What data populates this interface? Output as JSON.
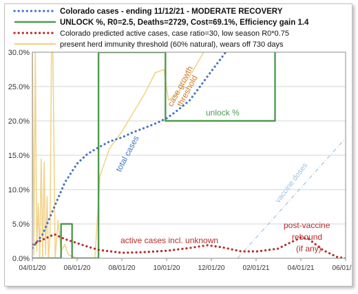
{
  "chart_data": {
    "type": "line",
    "xlim": [
      "2020-04-01",
      "2021-06-01"
    ],
    "x_ticks": [
      "04/01/20",
      "06/01/20",
      "08/01/20",
      "10/01/20",
      "12/01/20",
      "02/01/21",
      "04/01/21",
      "06/01/21"
    ],
    "ylim": [
      0,
      30
    ],
    "y_ticks": [
      "0.0%",
      "5.0%",
      "10.0%",
      "15.0%",
      "20.0%",
      "25.0%",
      "30.0%"
    ],
    "grid": "horizontal",
    "legend_position": "top",
    "legend": [
      {
        "label": "Colorado cases - ending 11/12/21 - MODERATE RECOVERY",
        "color": "#4472c4",
        "style": "dotted",
        "bold": true
      },
      {
        "label": "UNLOCK %, R0=2.5,  Deaths=2729, Cost=69.1%, Efficiency gain 1.4",
        "color": "#4e9a4e",
        "style": "solid",
        "bold": true
      },
      {
        "label": "Colorado predicted active cases, case ratio=30, low season R0*0.75",
        "color": "#b52a2a",
        "style": "dotted",
        "bold": false
      },
      {
        "label": "present herd immunity threshold (60% natural), wears off 730 days",
        "color": "#f2d38a",
        "style": "solid",
        "bold": false
      }
    ],
    "series": [
      {
        "name": "Colorado cases - ending 11/12/21 - MODERATE RECOVERY",
        "color": "#4472c4",
        "style": "dotted",
        "points": [
          [
            "2020-04-01",
            1.5
          ],
          [
            "2020-04-15",
            3.5
          ],
          [
            "2020-05-01",
            7.5
          ],
          [
            "2020-05-15",
            11
          ],
          [
            "2020-06-01",
            13.8
          ],
          [
            "2020-06-15",
            15.2
          ],
          [
            "2020-07-01",
            16.2
          ],
          [
            "2020-07-15",
            17
          ],
          [
            "2020-08-01",
            17.6
          ],
          [
            "2020-08-15",
            18.3
          ],
          [
            "2020-09-01",
            19
          ],
          [
            "2020-09-15",
            19.6
          ],
          [
            "2020-10-01",
            20.4
          ],
          [
            "2020-10-15",
            21.5
          ],
          [
            "2020-11-01",
            23
          ],
          [
            "2020-11-15",
            25
          ],
          [
            "2020-12-01",
            27.3
          ],
          [
            "2020-12-20",
            30
          ]
        ]
      },
      {
        "name": "UNLOCK %, R0=2.5,  Deaths=2729, Cost=69.1%, Efficiency gain 1.4",
        "color": "#4e9a4e",
        "style": "solid",
        "points": [
          [
            "2020-04-01",
            0
          ],
          [
            "2020-05-10",
            0
          ],
          [
            "2020-05-10",
            5
          ],
          [
            "2020-05-25",
            5
          ],
          [
            "2020-05-25",
            0
          ],
          [
            "2020-06-30",
            0
          ],
          [
            "2020-06-30",
            30
          ],
          [
            "2020-09-29",
            30
          ],
          [
            "2020-09-29",
            20
          ],
          [
            "2021-02-25",
            20
          ],
          [
            "2021-02-25",
            30
          ]
        ]
      },
      {
        "name": "Colorado predicted active cases, case ratio=30, low season R0*0.75",
        "color": "#b52a2a",
        "style": "dotted",
        "points": [
          [
            "2020-04-01",
            2
          ],
          [
            "2020-04-15",
            2.7
          ],
          [
            "2020-05-01",
            3.5
          ],
          [
            "2020-05-15",
            2.8
          ],
          [
            "2020-06-01",
            2.2
          ],
          [
            "2020-06-15",
            1.7
          ],
          [
            "2020-07-01",
            1.2
          ],
          [
            "2020-08-01",
            0.8
          ],
          [
            "2020-09-01",
            0.9
          ],
          [
            "2020-10-01",
            1.1
          ],
          [
            "2020-11-01",
            1.5
          ],
          [
            "2020-11-25",
            1.9
          ],
          [
            "2020-12-15",
            1.6
          ],
          [
            "2021-01-10",
            1
          ],
          [
            "2021-02-01",
            1
          ],
          [
            "2021-03-01",
            1.4
          ],
          [
            "2021-03-20",
            2.4
          ],
          [
            "2021-04-01",
            3
          ],
          [
            "2021-04-12",
            2.8
          ],
          [
            "2021-05-01",
            1.2
          ],
          [
            "2021-05-20",
            0.2
          ],
          [
            "2021-06-01",
            0
          ]
        ]
      },
      {
        "name": "present herd immunity threshold (60% natural), wears off 730 days",
        "color": "#f2d38a",
        "style": "solid",
        "points": [
          [
            "2020-04-01",
            30
          ],
          [
            "2020-04-03",
            0.5
          ],
          [
            "2020-04-05",
            30
          ],
          [
            "2020-04-07",
            1
          ],
          [
            "2020-04-09",
            8
          ],
          [
            "2020-04-11",
            0
          ],
          [
            "2020-04-13",
            14.5
          ],
          [
            "2020-04-15",
            0
          ],
          [
            "2020-04-17",
            14
          ],
          [
            "2020-04-19",
            0.5
          ],
          [
            "2020-04-21",
            9
          ],
          [
            "2020-04-23",
            0
          ],
          [
            "2020-04-25",
            3
          ],
          [
            "2020-04-27",
            30
          ],
          [
            "2020-04-29",
            30
          ],
          [
            "2020-05-02",
            0
          ],
          [
            "2020-05-06",
            5.5
          ],
          [
            "2020-05-10",
            1
          ],
          [
            "2020-05-15",
            2
          ],
          [
            "2020-05-20",
            0.5
          ],
          [
            "2020-06-01",
            0
          ],
          [
            "2020-06-25",
            0
          ],
          [
            "2020-07-02",
            12
          ],
          [
            "2020-07-15",
            16
          ],
          [
            "2020-08-01",
            18.5
          ],
          [
            "2020-08-15",
            21
          ],
          [
            "2020-09-01",
            24
          ],
          [
            "2020-09-15",
            27
          ],
          [
            "2020-09-27",
            27.5
          ],
          [
            "2020-10-03",
            23
          ],
          [
            "2020-10-15",
            24
          ],
          [
            "2020-11-01",
            26.5
          ],
          [
            "2020-11-20",
            30
          ]
        ]
      },
      {
        "name": "vaccine doses",
        "color": "#9dc3e6",
        "style": "dashdot",
        "points": [
          [
            "2021-01-05",
            0
          ],
          [
            "2021-06-01",
            17.5
          ]
        ]
      }
    ],
    "annotations": [
      {
        "text": "case growth",
        "color": "#c8792b"
      },
      {
        "text": "threshold",
        "color": "#c8792b"
      },
      {
        "text": "unlock %",
        "color": "#4e9a4e"
      },
      {
        "text": "total cases",
        "color": "#4472c4"
      },
      {
        "text": "vaccine doses",
        "color": "#9dc3e6"
      },
      {
        "text": "active cases incl. unknown",
        "color": "#b52a2a"
      },
      {
        "text": "post-vaccine",
        "color": "#b52a2a"
      },
      {
        "text": "rebound",
        "color": "#b52a2a"
      },
      {
        "text": "(if any)",
        "color": "#b52a2a"
      }
    ]
  }
}
